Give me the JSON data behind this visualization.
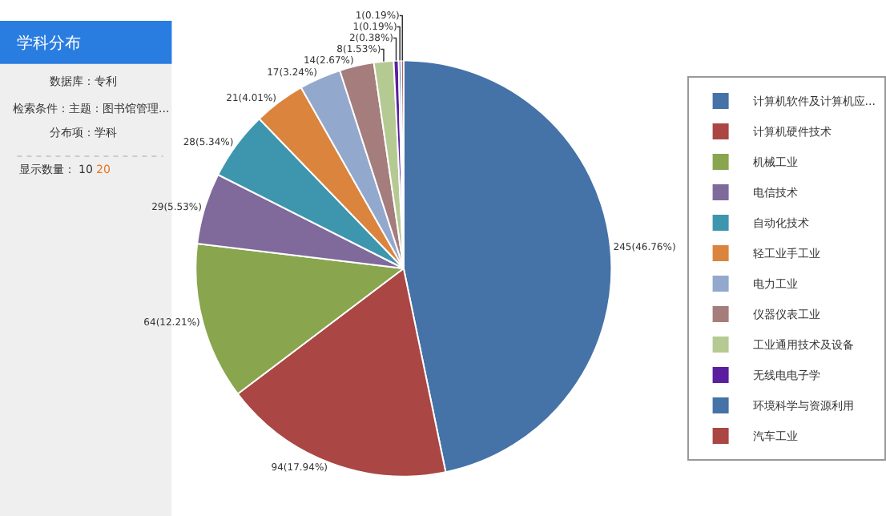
{
  "chart_data": {
    "type": "pie",
    "title": "学科分布",
    "annotations": [
      "数据库：专利",
      "检索条件：主题：图书馆管理...",
      "分布项：学科",
      "显示数量：",
      "10",
      "20"
    ],
    "categories": [
      "计算机软件及计算机应...",
      "计算机硬件技术",
      "机械工业",
      "电信技术",
      "自动化技术",
      "轻工业手工业",
      "电力工业",
      "仪器仪表工业",
      "工业通用技术及设备",
      "无线电电子学",
      "环境科学与资源利用",
      "汽车工业"
    ],
    "values": [
      245,
      94,
      64,
      29,
      28,
      21,
      17,
      14,
      8,
      2,
      1,
      1
    ],
    "value_labels": [
      "245(46.76%)",
      "94(17.94%)",
      "64(12.21%)",
      "29(5.53%)",
      "28(5.34%)",
      "21(4.01%)",
      "17(3.24%)",
      "14(2.67%)",
      "8(1.53%)",
      "2(0.38%)",
      "1(0.19%)",
      "1(0.19%)"
    ],
    "colors": [
      "#4572a7",
      "#aa4643",
      "#89a54e",
      "#80699b",
      "#3d96ae",
      "#db843d",
      "#92a8cd",
      "#a47d7c",
      "#b5ca92",
      "#5a1f9e",
      "#4572a7",
      "#aa4643"
    ],
    "legend": "right"
  }
}
